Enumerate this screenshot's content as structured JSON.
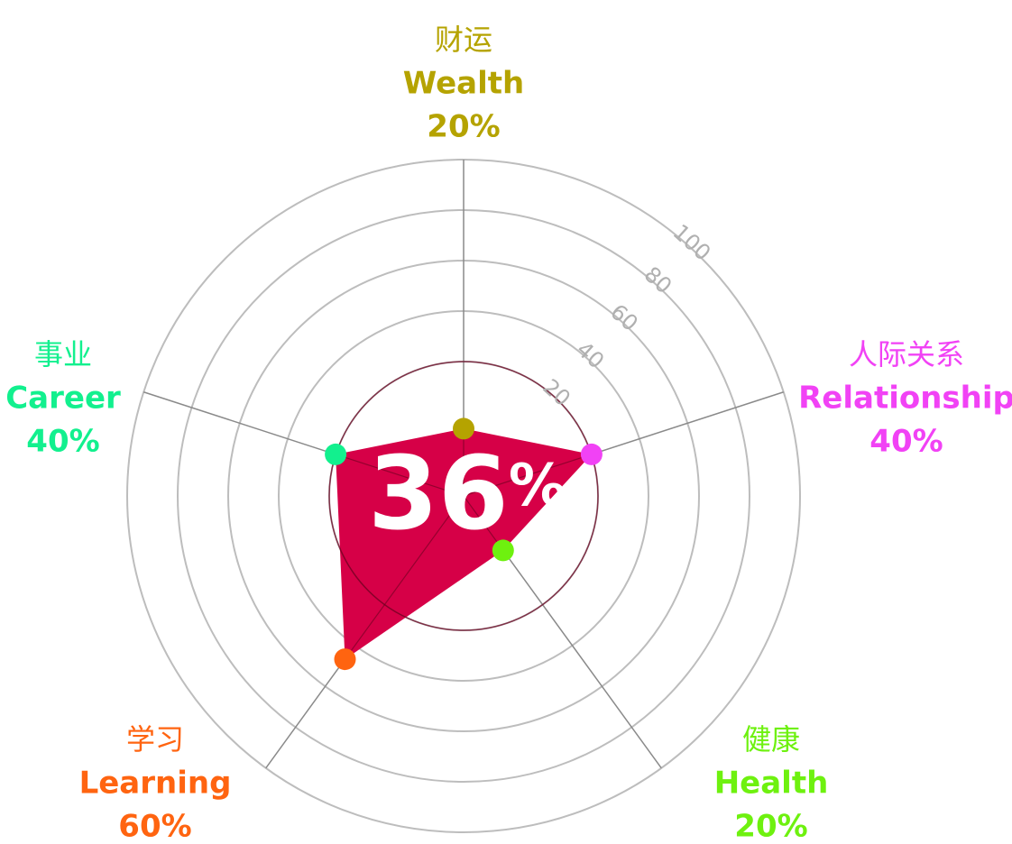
{
  "chart_data": {
    "type": "radar",
    "center_label": "36%",
    "radial_ticks": [
      "20",
      "40",
      "60",
      "80",
      "100"
    ],
    "rlim": [
      0,
      100
    ],
    "categories": [
      {
        "zh": "财运",
        "en": "Wealth",
        "value_label": "20%",
        "value": 20,
        "color": "#b5a300"
      },
      {
        "zh": "人际关系",
        "en": "Relationship",
        "value_label": "40%",
        "value": 40,
        "color": "#f142f5"
      },
      {
        "zh": "健康",
        "en": "Health",
        "value_label": "20%",
        "value": 20,
        "color": "#6ef10f"
      },
      {
        "zh": "学习",
        "en": "Learning",
        "value_label": "60%",
        "value": 60,
        "color": "#ff6410"
      },
      {
        "zh": "事业",
        "en": "Career",
        "value_label": "40%",
        "value": 40,
        "color": "#12f08e"
      }
    ],
    "fill_color": "#d60047",
    "grid_color": "#bdbdbd"
  }
}
